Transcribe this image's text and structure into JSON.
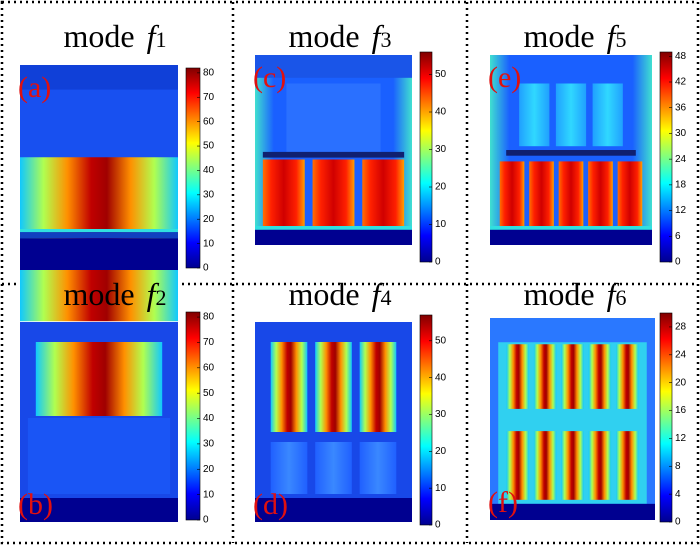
{
  "panels": [
    {
      "title": {
        "word": "mode",
        "symbol": "f",
        "index": "1"
      },
      "label": "(a)",
      "colorbar": {
        "range": [
          0,
          82
        ],
        "ticks": [
          0,
          10,
          20,
          30,
          40,
          50,
          60,
          70,
          80
        ]
      }
    },
    {
      "title": {
        "word": "mode",
        "symbol": "f",
        "index": "3"
      },
      "label": "(c)",
      "colorbar": {
        "range": [
          0,
          56
        ],
        "ticks": [
          0,
          10,
          20,
          30,
          40,
          50
        ]
      }
    },
    {
      "title": {
        "word": "mode",
        "symbol": "f",
        "index": "5"
      },
      "label": "(e)",
      "colorbar": {
        "range": [
          0,
          49
        ],
        "ticks": [
          0,
          6,
          12,
          18,
          24,
          30,
          36,
          42,
          48
        ]
      }
    },
    {
      "title": {
        "word": "mode",
        "symbol": "f",
        "index": "2"
      },
      "label": "(b)",
      "colorbar": {
        "range": [
          0,
          82
        ],
        "ticks": [
          0,
          10,
          20,
          30,
          40,
          50,
          60,
          70,
          80
        ]
      }
    },
    {
      "title": {
        "word": "mode",
        "symbol": "f",
        "index": "4"
      },
      "label": "(d)",
      "colorbar": {
        "range": [
          0,
          57
        ],
        "ticks": [
          0,
          10,
          20,
          30,
          40,
          50
        ]
      }
    },
    {
      "title": {
        "word": "mode",
        "symbol": "f",
        "index": "6"
      },
      "label": "(f)",
      "colorbar": {
        "range": [
          0,
          30
        ],
        "ticks": [
          0,
          4,
          8,
          12,
          16,
          20,
          24,
          28
        ]
      }
    }
  ]
}
